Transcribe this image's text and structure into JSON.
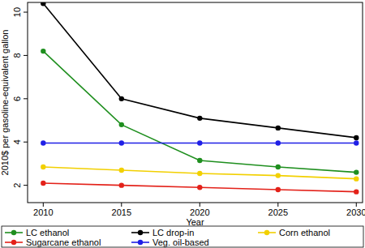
{
  "chart_data": {
    "type": "line",
    "x_label": "Year",
    "y_label": "2010$ per gasoline-equivalent gallon",
    "x": [
      2010,
      2015,
      2020,
      2025,
      2030
    ],
    "series": [
      {
        "name": "LC ethanol",
        "color": "#1f8f1f",
        "values": [
          8.2,
          4.8,
          3.15,
          2.85,
          2.6
        ]
      },
      {
        "name": "LC drop-in",
        "color": "#000000",
        "values": [
          10.4,
          6.0,
          5.1,
          4.65,
          4.2
        ]
      },
      {
        "name": "Corn ethanol",
        "color": "#f2d000",
        "values": [
          2.85,
          2.7,
          2.55,
          2.45,
          2.3
        ]
      },
      {
        "name": "Sugarcane ethanol",
        "color": "#e32119",
        "values": [
          2.1,
          2.0,
          1.9,
          1.8,
          1.7
        ]
      },
      {
        "name": "Veg. oil-based",
        "color": "#1f1fe6",
        "values": [
          3.95,
          3.95,
          3.95,
          3.95,
          3.95
        ]
      }
    ],
    "xlim": [
      2009,
      2030.4
    ],
    "ylim": [
      1.2,
      10.45
    ],
    "xticks": [
      2010,
      2015,
      2020,
      2025,
      2030
    ],
    "yticks": [
      2,
      4,
      6,
      8,
      10
    ],
    "grid": false,
    "marker": "circle",
    "legend": "bottom"
  }
}
